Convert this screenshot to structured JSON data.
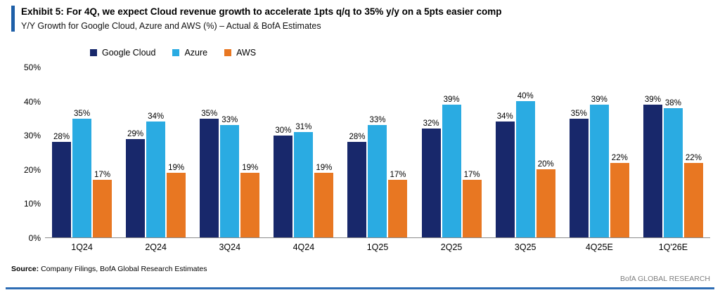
{
  "header": {
    "title": "Exhibit 5: For 4Q, we expect Cloud revenue growth to accelerate 1pts q/q to 35% y/y on a 5pts easier comp",
    "subtitle": "Y/Y Growth for Google Cloud, Azure and AWS (%) – Actual & BofA Estimates"
  },
  "footer": {
    "source_label": "Source:",
    "source_text": "Company Filings, BofA Global Research Estimates",
    "branding": "BofA GLOBAL RESEARCH"
  },
  "colors": {
    "google_cloud": "#18286b",
    "azure": "#2aabe2",
    "aws": "#e87722",
    "accent_bar": "#1e5fa8",
    "bottom_rule": "#2e6db4",
    "axis_line": "#8c8c8c"
  },
  "chart_data": {
    "type": "bar",
    "title": "Y/Y Growth for Google Cloud, Azure and AWS (%) – Actual & BofA Estimates",
    "categories": [
      "1Q24",
      "2Q24",
      "3Q24",
      "4Q24",
      "1Q25",
      "2Q25",
      "3Q25",
      "4Q25E",
      "1Q'26E"
    ],
    "series": [
      {
        "name": "Google Cloud",
        "color": "#18286b",
        "values": [
          28,
          29,
          35,
          30,
          28,
          32,
          34,
          35,
          39
        ]
      },
      {
        "name": "Azure",
        "color": "#2aabe2",
        "values": [
          35,
          34,
          33,
          31,
          33,
          39,
          40,
          39,
          38
        ]
      },
      {
        "name": "AWS",
        "color": "#e87722",
        "values": [
          17,
          19,
          19,
          19,
          17,
          17,
          20,
          22,
          22
        ]
      }
    ],
    "value_suffix": "%",
    "xlabel": "",
    "ylabel": "",
    "ylim": [
      0,
      50
    ],
    "yticks": [
      "0%",
      "10%",
      "20%",
      "30%",
      "40%",
      "50%"
    ],
    "grid": false,
    "legend_position": "top-left",
    "data_labels": true
  }
}
